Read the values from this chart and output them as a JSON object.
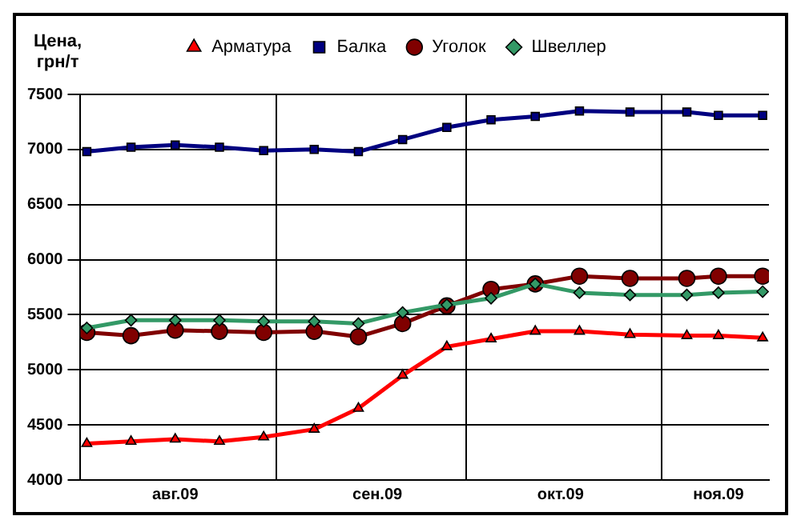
{
  "chart_data": {
    "type": "line",
    "ylabel": "Цена, грн/т",
    "x": [
      "--08-02",
      "--08-09",
      "--08-16",
      "--08-23",
      "--08-30",
      "--09-07",
      "--09-14",
      "--09-21",
      "--09-28",
      "--10-05",
      "--10-12",
      "--10-19",
      "--10-27",
      "--11-05",
      "--11-10",
      "--11-17"
    ],
    "series": [
      {
        "name": "Арматура",
        "color": "#ff0000",
        "marker": "triangle",
        "values": [
          4330,
          4350,
          4370,
          4350,
          4390,
          4460,
          4650,
          4950,
          5210,
          5280,
          5350,
          5350,
          5320,
          5310,
          5310,
          5290
        ]
      },
      {
        "name": "Балка",
        "color": "#000080",
        "marker": "square",
        "values": [
          6980,
          7020,
          7040,
          7020,
          6990,
          7000,
          6980,
          7090,
          7200,
          7270,
          7300,
          7350,
          7340,
          7340,
          7310,
          7310
        ]
      },
      {
        "name": "Уголок",
        "color": "#800000",
        "marker": "circle",
        "values": [
          5340,
          5310,
          5360,
          5350,
          5340,
          5350,
          5300,
          5420,
          5580,
          5730,
          5780,
          5850,
          5830,
          5830,
          5850,
          5850
        ]
      },
      {
        "name": "Швеллер",
        "color": "#339966",
        "marker": "diamond",
        "values": [
          5380,
          5450,
          5450,
          5450,
          5440,
          5440,
          5420,
          5520,
          5590,
          5650,
          5780,
          5700,
          5680,
          5680,
          5700,
          5710
        ]
      }
    ],
    "xlim": [
      "--08-01",
      "--11-18"
    ],
    "xticks": [
      {
        "value": "--08-01",
        "label": null
      },
      {
        "value": "--08-16",
        "label": "авг.09"
      },
      {
        "value": "--09-01",
        "label": null
      },
      {
        "value": "--09-17",
        "label": "сен.09"
      },
      {
        "value": "--10-01",
        "label": null
      },
      {
        "value": "--10-16",
        "label": "окт.09"
      },
      {
        "value": "--11-01",
        "label": null
      },
      {
        "value": "--11-10",
        "label": "ноя.09"
      }
    ],
    "ylim": [
      4000,
      7500
    ],
    "yticks": [
      4000,
      4500,
      5000,
      5500,
      6000,
      6500,
      7000,
      7500
    ],
    "grid": true,
    "legend": "top",
    "line_style": "solid"
  }
}
